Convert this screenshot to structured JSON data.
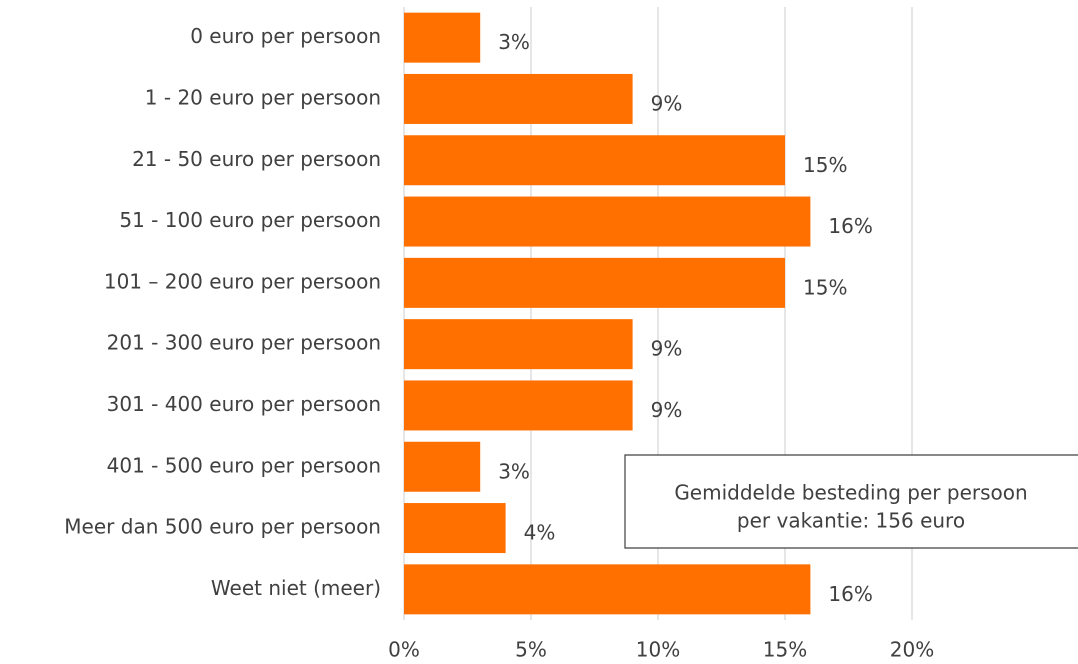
{
  "chart_data": {
    "type": "hbar",
    "categories": [
      "0 euro per persoon",
      "1 - 20 euro per persoon",
      "21 - 50 euro per persoon",
      "51 - 100 euro per persoon",
      "101 – 200 euro per persoon",
      "201 - 300 euro per persoon",
      "301 - 400 euro per persoon",
      "401 - 500 euro per persoon",
      "Meer dan 500 euro per persoon",
      "Weet niet (meer)"
    ],
    "values": [
      3,
      9,
      15,
      16,
      15,
      9,
      9,
      3,
      4,
      16
    ],
    "value_labels": [
      "3%",
      "9%",
      "15%",
      "16%",
      "15%",
      "9%",
      "9%",
      "3%",
      "4%",
      "16%"
    ],
    "color": "#ff7000",
    "xlim": [
      0,
      20
    ],
    "xticks": [
      {
        "value": 0,
        "label": "0%"
      },
      {
        "value": 5,
        "label": "5%"
      },
      {
        "value": 10,
        "label": "10%"
      },
      {
        "value": 15,
        "label": "15%"
      },
      {
        "value": 20,
        "label": "20%"
      }
    ],
    "grid": true,
    "annotation": [
      "Gemiddelde besteding per persoon",
      "per vakantie: 156 euro"
    ]
  }
}
